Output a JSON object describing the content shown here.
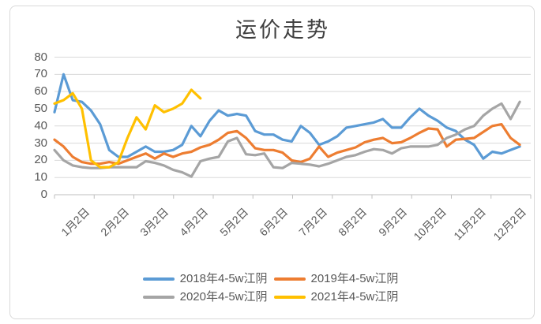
{
  "chart": {
    "title": "运价走势"
  },
  "colors": {
    "background": "#FFFFFF",
    "border": "#D9D9D9",
    "gridline": "#D9D9D9",
    "axis": "#BFBFBF",
    "tick_label": "#595959",
    "title": "#404040",
    "blue_2018": "#5B9BD5",
    "orange_2019": "#ED7D31",
    "gray_2020": "#A5A5A5",
    "yellow_2021": "#FFC000"
  },
  "chart_data": {
    "type": "line",
    "title": "运价走势",
    "xlabel": "",
    "ylabel": "",
    "ylim": [
      0,
      80
    ],
    "y_ticks": [
      0,
      10,
      20,
      30,
      40,
      50,
      60,
      70,
      80
    ],
    "x_tick_labels": [
      "1月2日",
      "2月2日",
      "3月2日",
      "4月2日",
      "5月2日",
      "6月2日",
      "7月2日",
      "8月2日",
      "9月2日",
      "10月2日",
      "11月2日",
      "12月2日"
    ],
    "x_unit": "weekly samples from 1月2日 to 12月2日",
    "grid": true,
    "legend_position": "bottom",
    "series": [
      {
        "name": "2018年4-5w江阴",
        "color": "#5B9BD5",
        "values": [
          48,
          70,
          55,
          54,
          49,
          41,
          26,
          22,
          22,
          25,
          28,
          25,
          25,
          26,
          29,
          40,
          34,
          43,
          49,
          46,
          47,
          46,
          37,
          35,
          35,
          32,
          31,
          40,
          36,
          29,
          31,
          34,
          39,
          40,
          41,
          42,
          44,
          39,
          39,
          45,
          50,
          46,
          43,
          39,
          37,
          32,
          29,
          21,
          25,
          24,
          26,
          28
        ]
      },
      {
        "name": "2019年4-5w江阴",
        "color": "#ED7D31",
        "values": [
          32,
          28,
          22,
          19,
          18,
          18,
          19,
          18,
          20,
          22,
          24,
          21,
          24,
          22,
          24,
          25,
          27.5,
          29,
          32,
          36,
          37,
          33,
          27,
          26,
          26,
          24.5,
          20,
          19,
          21,
          28,
          22,
          24.5,
          26,
          27.5,
          30.5,
          32,
          33,
          30,
          30.5,
          33,
          36,
          38.5,
          38,
          28,
          32,
          32.5,
          33,
          36.5,
          40,
          41,
          33,
          29
        ]
      },
      {
        "name": "2020年4-5w江阴",
        "color": "#A5A5A5",
        "values": [
          26,
          20,
          17,
          16,
          15.5,
          15.5,
          16,
          16,
          16,
          16,
          19.5,
          18.5,
          17,
          14.5,
          13,
          10.5,
          19.5,
          21,
          22,
          31,
          33,
          23.5,
          23,
          24,
          16,
          15.5,
          18.5,
          18,
          17.5,
          16.5,
          18,
          20,
          22,
          23,
          25,
          26.5,
          26,
          24,
          27,
          28,
          28,
          28,
          29,
          33,
          35,
          38,
          40,
          46,
          50,
          53,
          44,
          54
        ]
      },
      {
        "name": "2021年4-5w江阴",
        "color": "#FFC000",
        "values": [
          53,
          55,
          59,
          50,
          20,
          16,
          16,
          19,
          33,
          45,
          38,
          52,
          48,
          50,
          53,
          61,
          56
        ]
      }
    ]
  }
}
